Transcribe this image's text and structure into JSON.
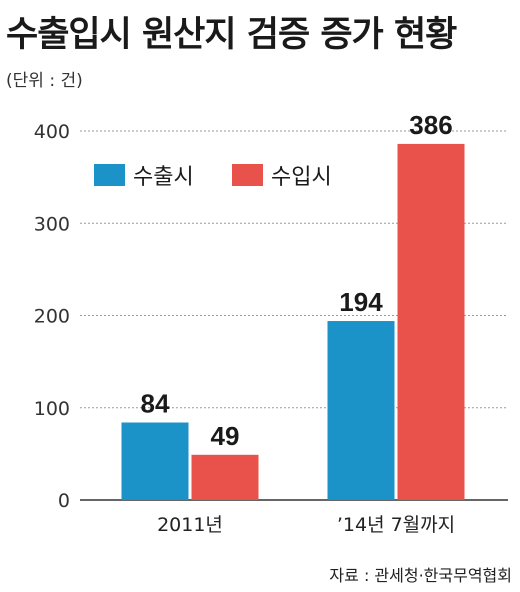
{
  "title": "수출입시 원산지 검증 증가 현황",
  "unit_note": "(단위 : 건)",
  "source": "자료 : 관세청·한국무역협회",
  "colors": {
    "export": "#1b93c9",
    "import": "#e9524a",
    "grid": "#9a9a9a",
    "axis": "#333333"
  },
  "chart_data": {
    "type": "bar",
    "categories": [
      "2011년",
      "’14년 7월까지"
    ],
    "series": [
      {
        "name": "수출시",
        "values": [
          84,
          194
        ]
      },
      {
        "name": "수입시",
        "values": [
          49,
          386
        ]
      }
    ],
    "ylim": [
      0,
      400
    ],
    "yticks": [
      0,
      100,
      200,
      300,
      400
    ],
    "xlabel": "",
    "ylabel": "",
    "grid": true,
    "legend_position": "top-left"
  }
}
